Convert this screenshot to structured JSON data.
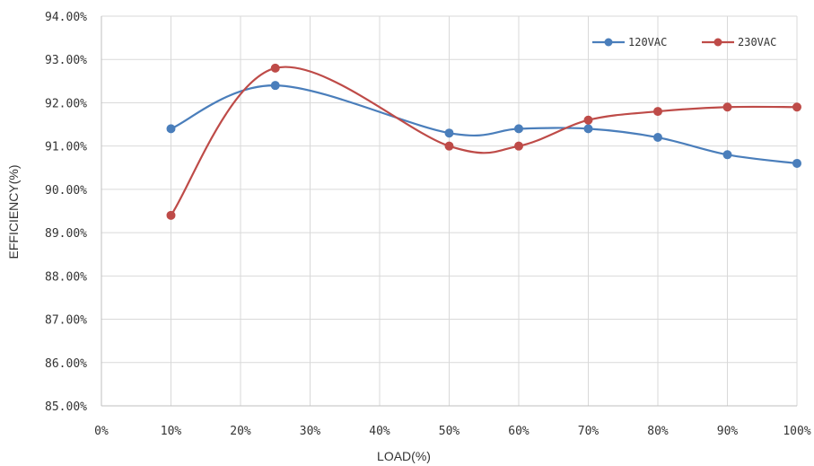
{
  "chart_data": {
    "type": "line",
    "title": "",
    "xlabel": "LOAD(%)",
    "ylabel": "EFFICIENCY(%)",
    "x_ticks": [
      "0%",
      "10%",
      "20%",
      "30%",
      "40%",
      "50%",
      "60%",
      "70%",
      "80%",
      "90%",
      "100%"
    ],
    "y_ticks": [
      "85.00%",
      "86.00%",
      "87.00%",
      "88.00%",
      "89.00%",
      "90.00%",
      "91.00%",
      "92.00%",
      "93.00%",
      "94.00%"
    ],
    "xlim": [
      0,
      100
    ],
    "ylim": [
      85,
      94
    ],
    "grid": true,
    "smooth": true,
    "legend_position": "top-right",
    "series": [
      {
        "name": "120VAC",
        "color": "#4a7ebb",
        "x": [
          10,
          25,
          50,
          60,
          70,
          80,
          90,
          100
        ],
        "values": [
          91.4,
          92.4,
          91.3,
          91.4,
          91.4,
          91.2,
          90.8,
          90.6
        ]
      },
      {
        "name": "230VAC",
        "color": "#be4b48",
        "x": [
          10,
          25,
          50,
          60,
          70,
          80,
          90,
          100
        ],
        "values": [
          89.4,
          92.8,
          91.0,
          91.0,
          91.6,
          91.8,
          91.9,
          91.9
        ]
      }
    ]
  }
}
